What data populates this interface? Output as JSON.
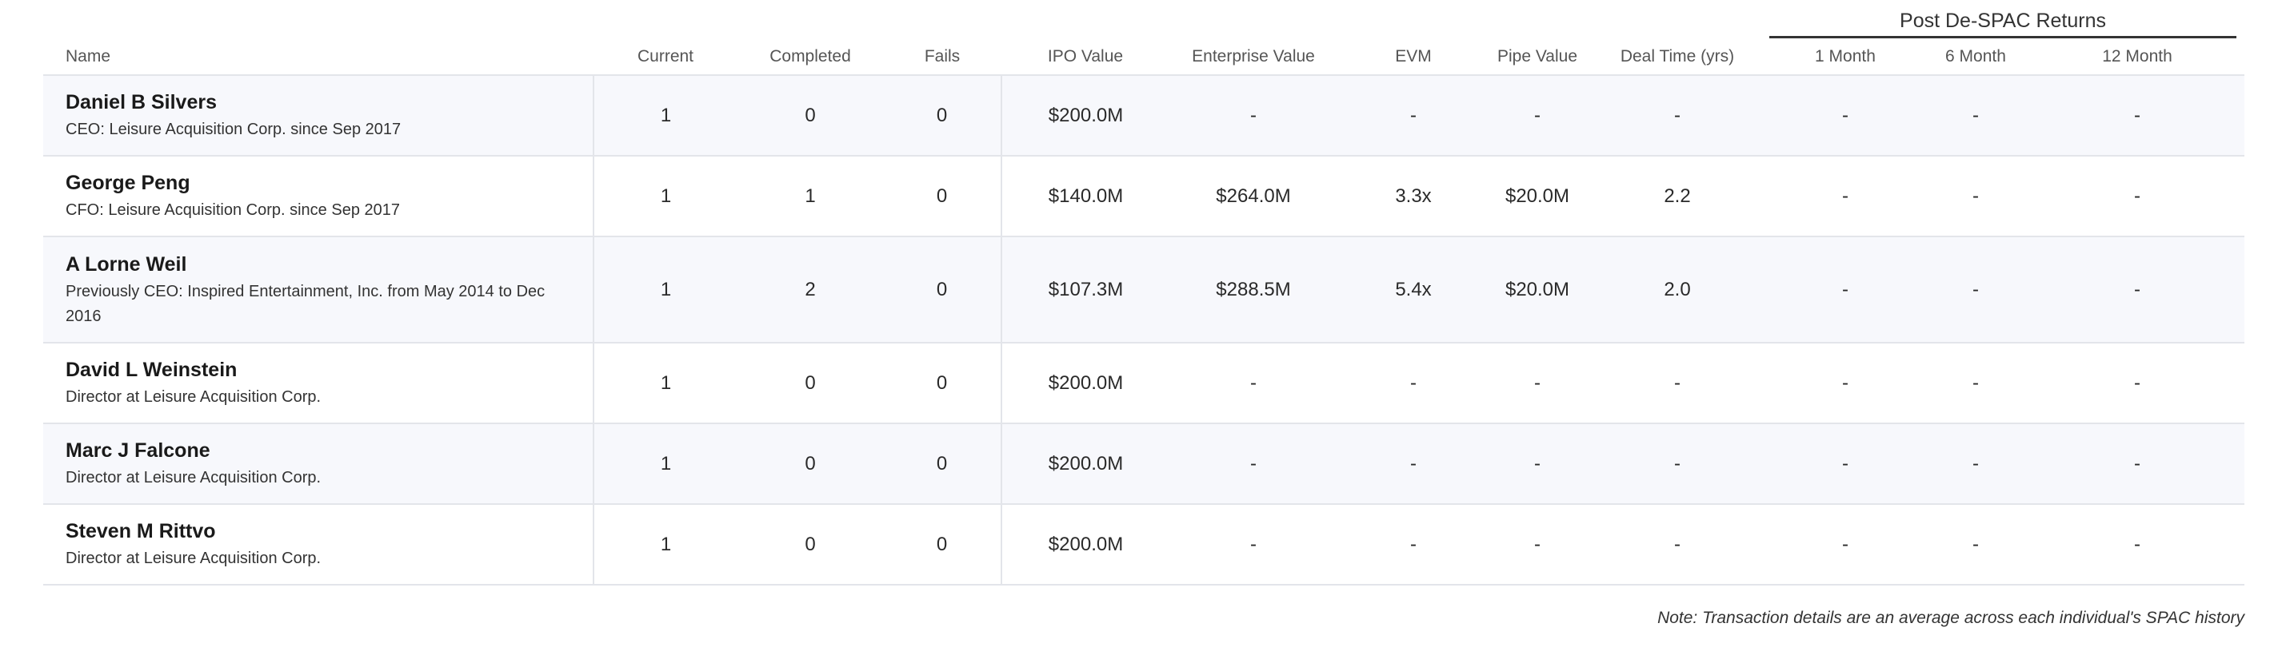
{
  "group_header": "Post De-SPAC Returns",
  "columns": {
    "name": "Name",
    "current": "Current",
    "completed": "Completed",
    "fails": "Fails",
    "ipo_value": "IPO Value",
    "enterprise_value": "Enterprise Value",
    "evm": "EVM",
    "pipe_value": "Pipe Value",
    "deal_time": "Deal Time (yrs)",
    "month_1": "1 Month",
    "month_6": "6 Month",
    "month_12": "12 Month"
  },
  "rows": [
    {
      "name": "Daniel B Silvers",
      "role": "CEO: Leisure Acquisition Corp. since Sep 2017",
      "current": "1",
      "completed": "0",
      "fails": "0",
      "ipo_value": "$200.0M",
      "enterprise_value": "-",
      "evm": "-",
      "pipe_value": "-",
      "deal_time": "-",
      "month_1": "-",
      "month_6": "-",
      "month_12": "-"
    },
    {
      "name": "George Peng",
      "role": "CFO: Leisure Acquisition Corp. since Sep 2017",
      "current": "1",
      "completed": "1",
      "fails": "0",
      "ipo_value": "$140.0M",
      "enterprise_value": "$264.0M",
      "evm": "3.3x",
      "pipe_value": "$20.0M",
      "deal_time": "2.2",
      "month_1": "-",
      "month_6": "-",
      "month_12": "-"
    },
    {
      "name": "A Lorne Weil",
      "role": "Previously CEO: Inspired Entertainment, Inc. from May 2014 to Dec 2016",
      "current": "1",
      "completed": "2",
      "fails": "0",
      "ipo_value": "$107.3M",
      "enterprise_value": "$288.5M",
      "evm": "5.4x",
      "pipe_value": "$20.0M",
      "deal_time": "2.0",
      "month_1": "-",
      "month_6": "-",
      "month_12": "-"
    },
    {
      "name": "David L Weinstein",
      "role": "Director at Leisure Acquisition Corp.",
      "current": "1",
      "completed": "0",
      "fails": "0",
      "ipo_value": "$200.0M",
      "enterprise_value": "-",
      "evm": "-",
      "pipe_value": "-",
      "deal_time": "-",
      "month_1": "-",
      "month_6": "-",
      "month_12": "-"
    },
    {
      "name": "Marc J Falcone",
      "role": "Director at Leisure Acquisition Corp.",
      "current": "1",
      "completed": "0",
      "fails": "0",
      "ipo_value": "$200.0M",
      "enterprise_value": "-",
      "evm": "-",
      "pipe_value": "-",
      "deal_time": "-",
      "month_1": "-",
      "month_6": "-",
      "month_12": "-"
    },
    {
      "name": "Steven M Rittvo",
      "role": "Director at Leisure Acquisition Corp.",
      "current": "1",
      "completed": "0",
      "fails": "0",
      "ipo_value": "$200.0M",
      "enterprise_value": "-",
      "evm": "-",
      "pipe_value": "-",
      "deal_time": "-",
      "month_1": "-",
      "month_6": "-",
      "month_12": "-"
    }
  ],
  "note": "Note: Transaction details are an average across each individual's SPAC history"
}
